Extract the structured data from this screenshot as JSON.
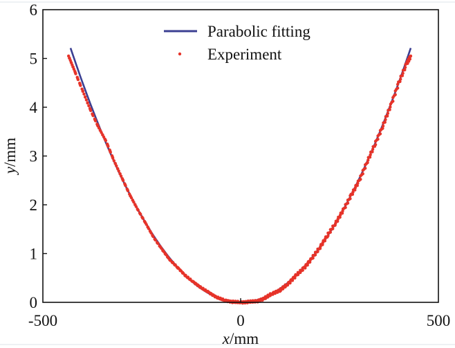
{
  "chart_data": {
    "type": "scatter",
    "title": "",
    "xlabel_var": "x",
    "xlabel_unit": "/mm",
    "ylabel_var": "y",
    "ylabel_unit": "/mm",
    "xlim": [
      -500,
      500
    ],
    "ylim": [
      0,
      6
    ],
    "x_ticks": [
      -500,
      0,
      500
    ],
    "x_tick_labels": [
      "-500",
      "0",
      "500"
    ],
    "y_ticks": [
      0,
      1,
      2,
      3,
      4,
      5,
      6
    ],
    "y_tick_labels": [
      "0",
      "1",
      "2",
      "3",
      "4",
      "5",
      "6"
    ],
    "grid": false,
    "legend_placement": "top-center",
    "series": [
      {
        "name": "Parabolic fitting",
        "kind": "line",
        "color": "#3b3f92",
        "coefficient": 2.82e-05,
        "x_range": [
          -430,
          430
        ]
      },
      {
        "name": "Experiment",
        "kind": "points",
        "color": "#e63329",
        "points": [
          [
            -435,
            5.05
          ],
          [
            -420,
            4.75
          ],
          [
            -400,
            4.35
          ],
          [
            -380,
            3.95
          ],
          [
            -360,
            3.6
          ],
          [
            -340,
            3.3
          ],
          [
            -320,
            2.9
          ],
          [
            -300,
            2.55
          ],
          [
            -280,
            2.2
          ],
          [
            -260,
            1.9
          ],
          [
            -240,
            1.62
          ],
          [
            -220,
            1.33
          ],
          [
            -200,
            1.1
          ],
          [
            -180,
            0.88
          ],
          [
            -160,
            0.72
          ],
          [
            -140,
            0.55
          ],
          [
            -120,
            0.42
          ],
          [
            -100,
            0.3
          ],
          [
            -80,
            0.2
          ],
          [
            -60,
            0.1
          ],
          [
            -40,
            0.04
          ],
          [
            -20,
            0.01
          ],
          [
            0,
            0
          ],
          [
            20,
            0.01
          ],
          [
            40,
            0.02
          ],
          [
            60,
            0.08
          ],
          [
            80,
            0.18
          ],
          [
            100,
            0.25
          ],
          [
            120,
            0.38
          ],
          [
            140,
            0.55
          ],
          [
            160,
            0.7
          ],
          [
            180,
            0.9
          ],
          [
            200,
            1.12
          ],
          [
            220,
            1.38
          ],
          [
            240,
            1.62
          ],
          [
            260,
            1.9
          ],
          [
            280,
            2.2
          ],
          [
            300,
            2.5
          ],
          [
            320,
            2.88
          ],
          [
            340,
            3.25
          ],
          [
            360,
            3.62
          ],
          [
            380,
            4.05
          ],
          [
            400,
            4.5
          ],
          [
            420,
            4.9
          ],
          [
            430,
            5.05
          ]
        ]
      }
    ]
  }
}
